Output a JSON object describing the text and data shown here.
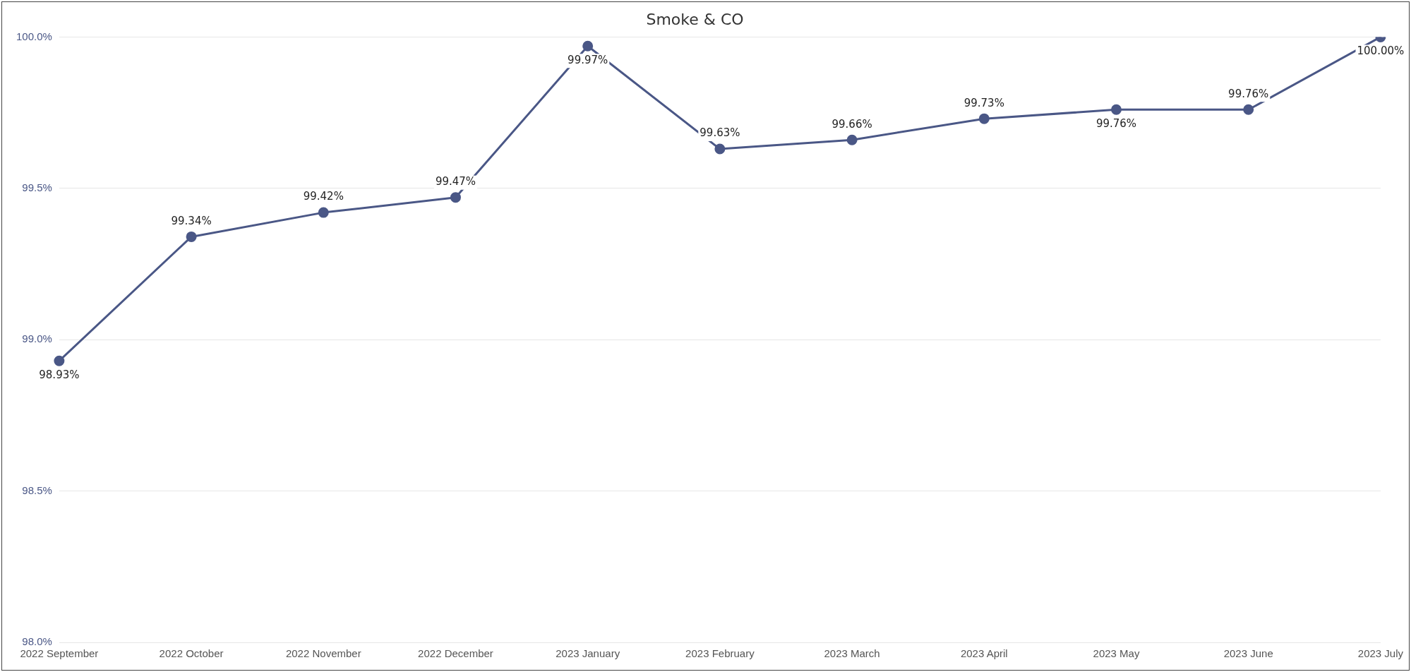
{
  "chart_data": {
    "type": "line",
    "title": "Smoke & CO",
    "categories": [
      "2022 September",
      "2022 October",
      "2022 November",
      "2022 December",
      "2023 January",
      "2023 February",
      "2023 March",
      "2023 April",
      "2023 May",
      "2023 June",
      "2023 July"
    ],
    "series": [
      {
        "color": "#4a5786",
        "values": [
          98.93,
          99.34,
          99.42,
          99.47,
          99.97,
          99.63,
          99.66,
          99.73,
          99.76,
          99.76,
          100.0
        ],
        "value_labels": [
          "98.93%",
          "99.34%",
          "99.42%",
          "99.47%",
          "99.97%",
          "99.63%",
          "99.66%",
          "99.73%",
          "99.76%",
          "99.76%",
          "100.00%"
        ]
      }
    ],
    "ylim": [
      98,
      100
    ],
    "yticks": [
      {
        "value": 98,
        "label": "98.0%"
      },
      {
        "value": 98.5,
        "label": "98.5%"
      },
      {
        "value": 99,
        "label": "99.0%"
      },
      {
        "value": 99.5,
        "label": "99.5%"
      },
      {
        "value": 100,
        "label": "100.0%"
      }
    ],
    "grid": "y",
    "legend": false,
    "marker": "circle",
    "line_style": "solid"
  }
}
